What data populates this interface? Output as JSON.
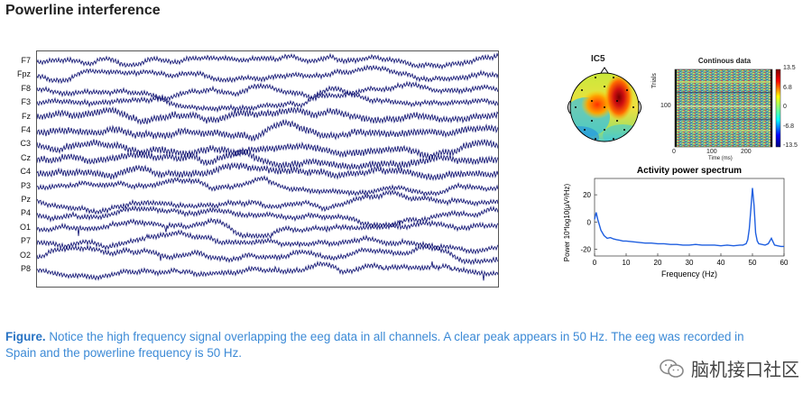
{
  "title": "Powerline interference",
  "eeg": {
    "channels": [
      "F7",
      "Fpz",
      "F8",
      "F3",
      "Fz",
      "F4",
      "C3",
      "Cz",
      "C4",
      "P3",
      "Pz",
      "P4",
      "O1",
      "P7",
      "O2",
      "P8"
    ]
  },
  "topomap": {
    "title": "IC5"
  },
  "continuous": {
    "title": "Continous data",
    "ylabel": "Trials",
    "ytick": "100",
    "xlabel": "Time (ms)",
    "xticks": [
      "0",
      "100",
      "200"
    ],
    "colorbar_ticks": [
      "13.5",
      "6.8",
      "0",
      "-6.8",
      "-13.5"
    ]
  },
  "chart_data": {
    "type": "line",
    "title": "Activity power spectrum",
    "xlabel": "Frequency (Hz)",
    "ylabel": "Power 10*log10(μV²/Hz)",
    "xlim": [
      0,
      60
    ],
    "ylim": [
      -25,
      32
    ],
    "xticks": [
      0,
      10,
      20,
      30,
      40,
      50,
      60
    ],
    "yticks": [
      -20,
      0,
      20
    ],
    "series": [
      {
        "color": "#1f5fe0",
        "x": [
          0,
          0.5,
          1,
          2,
          3,
          4,
          5,
          6,
          7,
          8,
          9,
          10,
          12,
          14,
          16,
          18,
          20,
          22,
          24,
          26,
          28,
          30,
          32,
          34,
          36,
          38,
          40,
          42,
          44,
          46,
          47,
          48,
          48.5,
          49,
          49.5,
          50,
          50.5,
          51,
          51.5,
          52,
          53,
          54,
          55,
          56,
          57,
          58,
          59,
          60
        ],
        "y": [
          2,
          7,
          2,
          -6,
          -10,
          -12,
          -11.5,
          -12.5,
          -13,
          -13.5,
          -14,
          -14,
          -14.5,
          -15,
          -15.5,
          -15.5,
          -16,
          -16,
          -16.5,
          -16.5,
          -17,
          -17,
          -16.5,
          -17,
          -17,
          -17,
          -17.5,
          -17,
          -17.5,
          -17,
          -17,
          -16,
          -13,
          -5,
          10,
          25,
          12,
          -8,
          -14,
          -16,
          -16.5,
          -17,
          -16,
          -12,
          -17,
          -17.5,
          -18,
          -18
        ]
      }
    ]
  },
  "caption": {
    "label": "Figure.",
    "text": " Notice the high frequency signal overlapping the eeg data in all channels. A clear peak appears in 50 Hz. The eeg was recorded in Spain and the powerline frequency is 50 Hz."
  },
  "footer": {
    "text": "脑机接口社区"
  }
}
